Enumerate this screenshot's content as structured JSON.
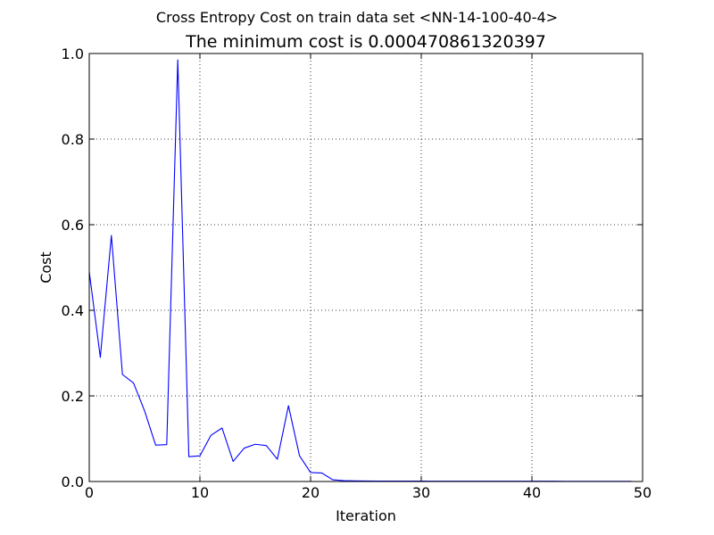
{
  "suptitle": "Cross Entropy Cost on train data set <NN-14-100-40-4>",
  "title": "The minimum cost is 0.000470861320397",
  "chart_data": {
    "type": "line",
    "xlabel": "Iteration",
    "ylabel": "Cost",
    "xlim": [
      0,
      50
    ],
    "ylim": [
      0,
      1.0
    ],
    "xticks": [
      0,
      10,
      20,
      30,
      40,
      50
    ],
    "yticks": [
      0.0,
      0.2,
      0.4,
      0.6,
      0.8,
      1.0
    ],
    "xtick_labels": [
      "0",
      "10",
      "20",
      "30",
      "40",
      "50"
    ],
    "ytick_labels": [
      "0.0",
      "0.2",
      "0.4",
      "0.6",
      "0.8",
      "1.0"
    ],
    "grid": true,
    "line_color": "#0000ff",
    "series": [
      {
        "x": [
          0,
          1,
          2,
          3,
          4,
          5,
          6,
          7,
          8,
          9,
          10,
          11,
          12,
          13,
          14,
          15,
          16,
          17,
          18,
          19,
          20,
          21,
          22,
          23,
          24,
          25,
          26,
          27,
          28,
          29,
          30,
          31,
          32,
          33,
          34,
          35,
          36,
          37,
          38,
          39,
          40,
          41,
          42,
          43,
          44,
          45,
          46,
          47,
          48,
          49
        ],
        "values": [
          0.49,
          0.29,
          0.575,
          0.25,
          0.23,
          0.165,
          0.085,
          0.086,
          0.985,
          0.058,
          0.06,
          0.108,
          0.125,
          0.047,
          0.078,
          0.087,
          0.084,
          0.052,
          0.177,
          0.06,
          0.021,
          0.02,
          0.004,
          0.002,
          0.0015,
          0.0012,
          0.001,
          0.001,
          0.001,
          0.0009,
          0.0009,
          0.0008,
          0.0008,
          0.0008,
          0.0007,
          0.0007,
          0.0007,
          0.0007,
          0.0006,
          0.0006,
          0.0006,
          0.0006,
          0.0006,
          0.0005,
          0.0005,
          0.0005,
          0.0005,
          0.0005,
          0.0005,
          0.00047
        ]
      }
    ]
  }
}
